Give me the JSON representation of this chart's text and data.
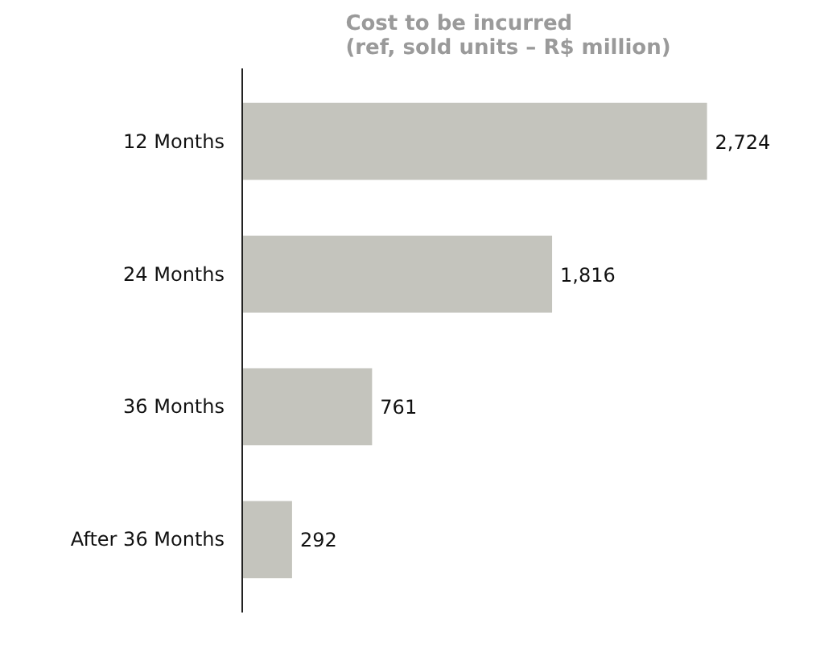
{
  "chart_data": {
    "type": "bar",
    "orientation": "horizontal",
    "title": "Cost to be incurred\n(ref,  sold units – R$ million)",
    "categories": [
      "12 Months",
      "24 Months",
      "36 Months",
      "After 36 Months"
    ],
    "values": [
      2724,
      1816,
      761,
      292
    ],
    "value_labels": [
      "2,724",
      "1,816",
      "761",
      "292"
    ],
    "color": "#c4c4bd",
    "grid": false
  }
}
